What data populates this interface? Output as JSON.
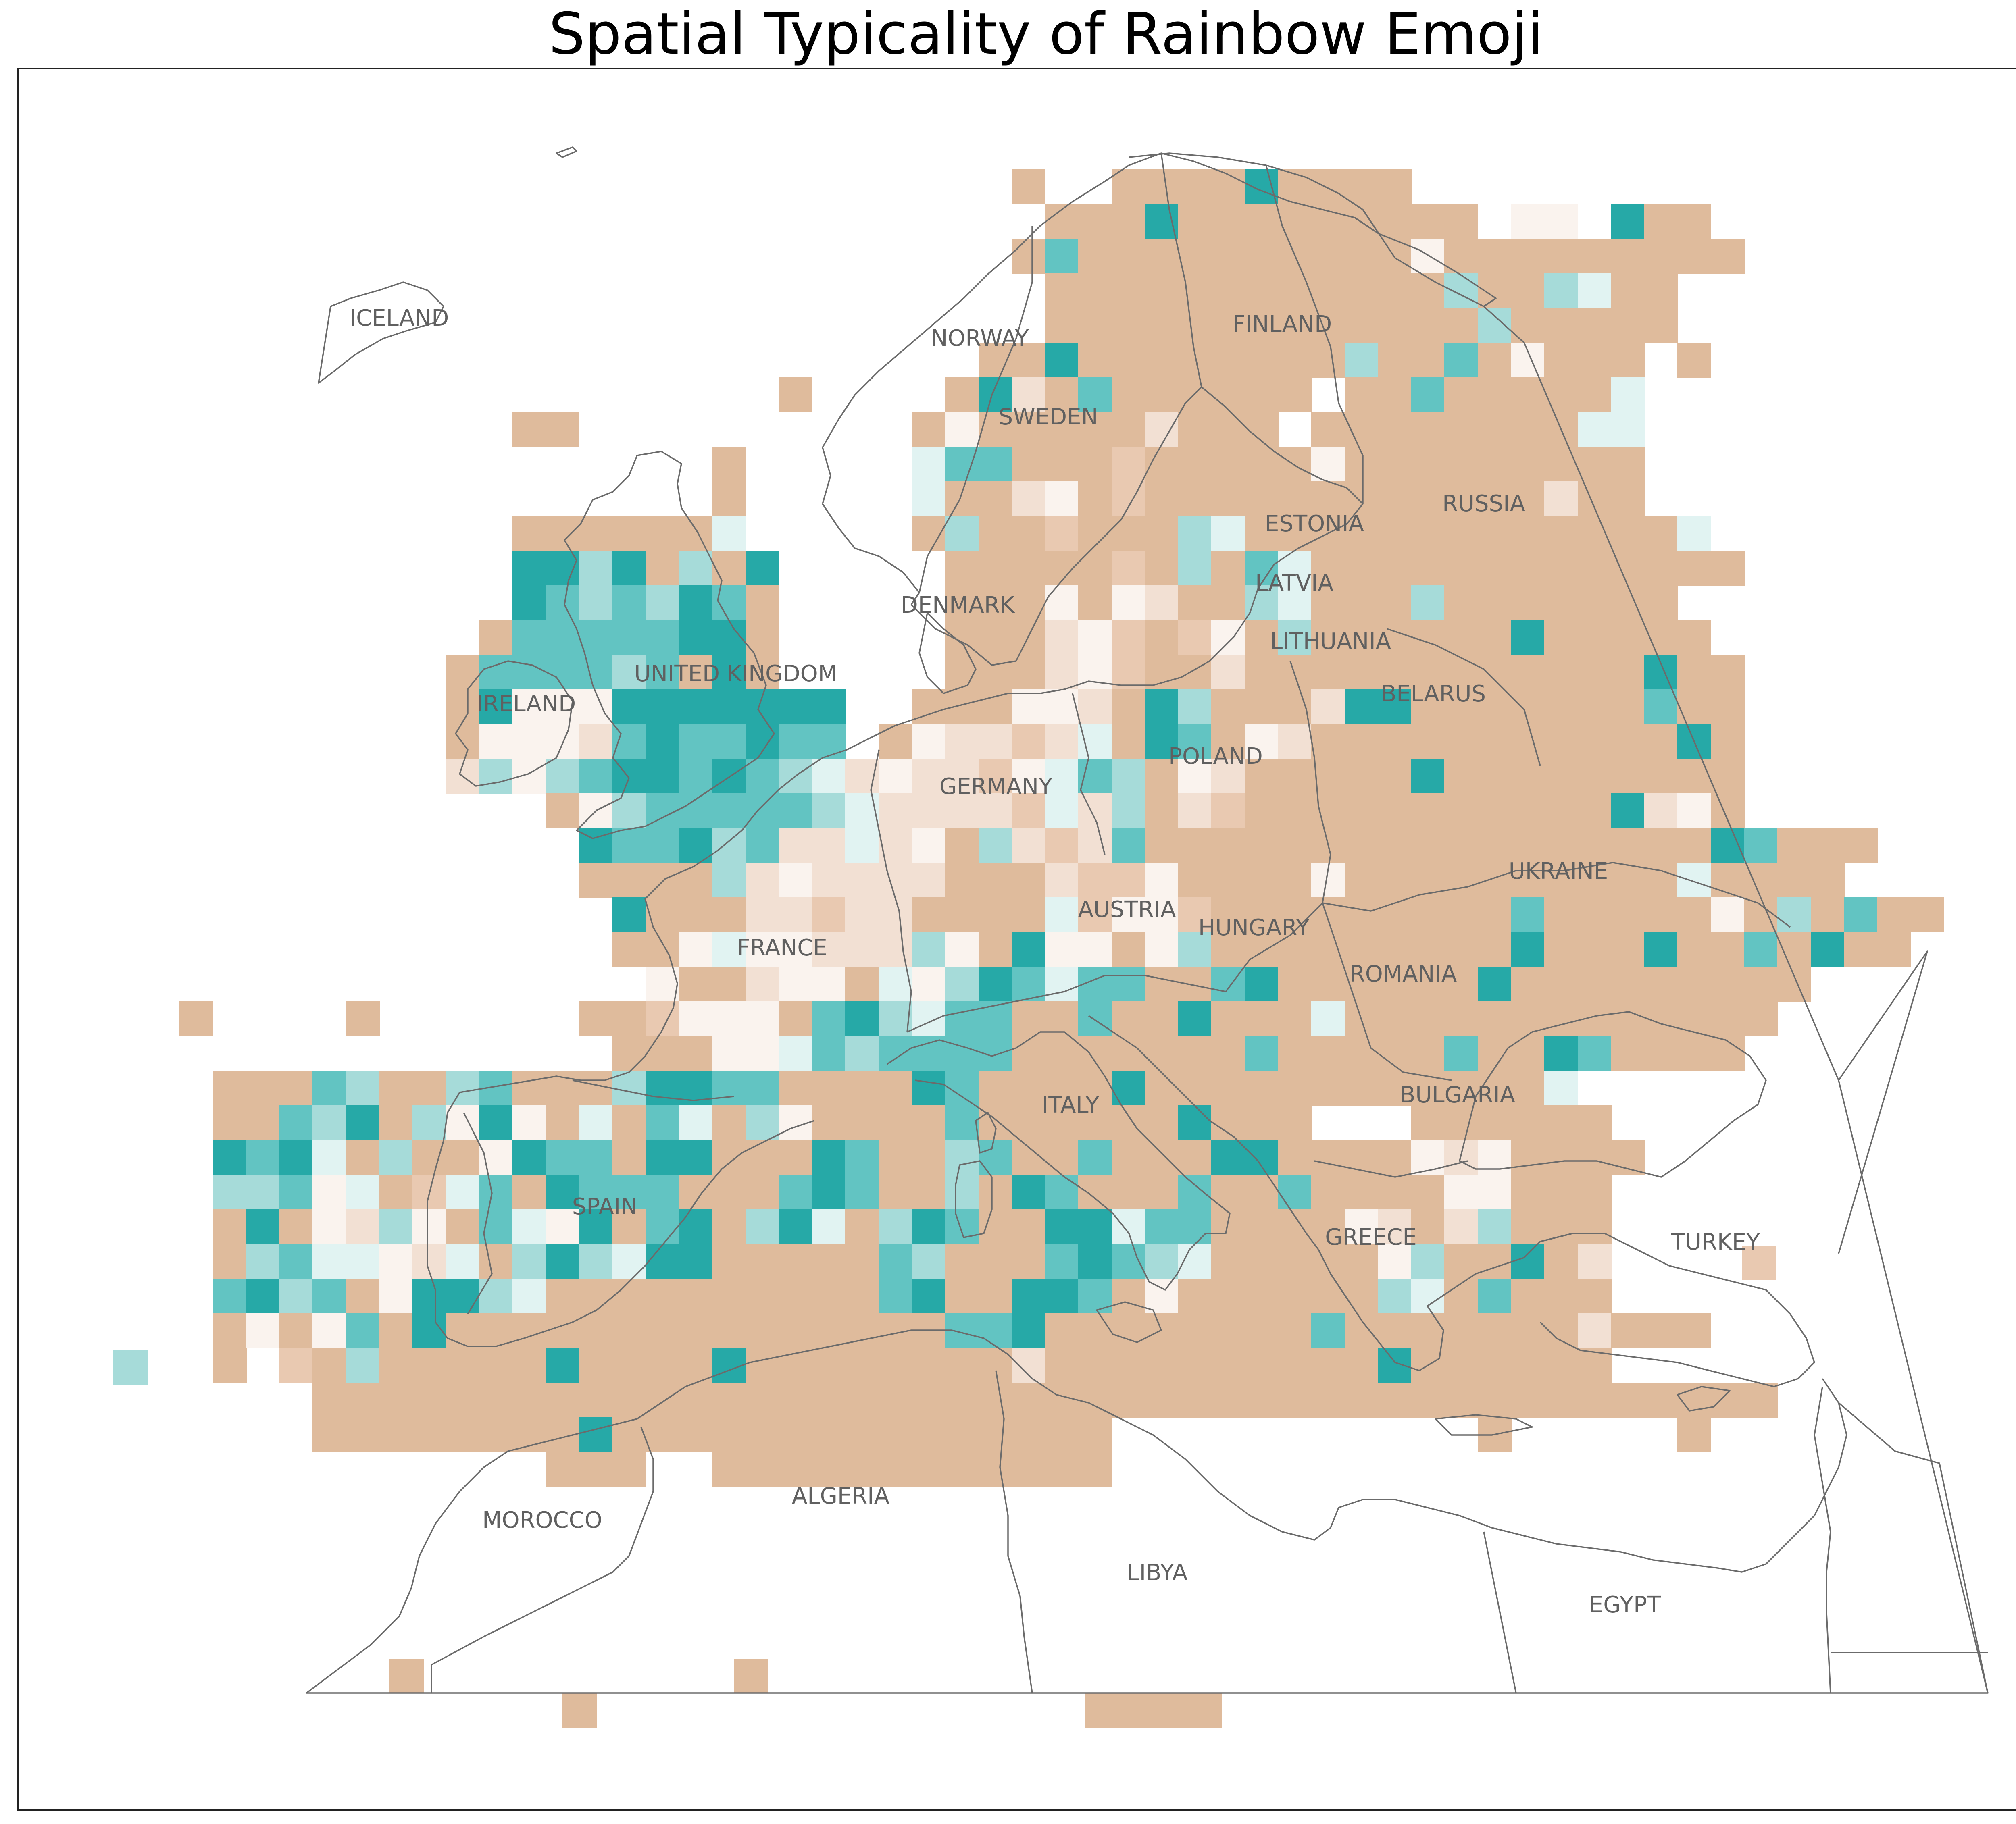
{
  "title": "Spatial Typicality of Rainbow Emoji",
  "colors": {
    "high": "#26a9a7",
    "mid_high": "#62c4c2",
    "mid": "#a6dbd9",
    "low_positive": "#e1f3f2",
    "neutral": "#faf3ee",
    "low_negative": "#f2e0d3",
    "mid_negative": "#e9c9b1",
    "negative": "#dfbb9c",
    "border_lines": "#6b6b6b"
  },
  "countries": [
    {
      "name": "ICELAND"
    },
    {
      "name": "NORWAY"
    },
    {
      "name": "FINLAND"
    },
    {
      "name": "SWEDEN"
    },
    {
      "name": "RUSSIA"
    },
    {
      "name": "ESTONIA"
    },
    {
      "name": "LATVIA"
    },
    {
      "name": "DENMARK"
    },
    {
      "name": "LITHUANIA"
    },
    {
      "name": "UNITED KINGDOM"
    },
    {
      "name": "BELARUS"
    },
    {
      "name": "IRELAND"
    },
    {
      "name": "POLAND"
    },
    {
      "name": "GERMANY"
    },
    {
      "name": "UKRAINE"
    },
    {
      "name": "AUSTRIA"
    },
    {
      "name": "HUNGARY"
    },
    {
      "name": "FRANCE"
    },
    {
      "name": "ROMANIA"
    },
    {
      "name": "BULGARIA"
    },
    {
      "name": "ITALY"
    },
    {
      "name": "SPAIN"
    },
    {
      "name": "GREECE"
    },
    {
      "name": "TURKEY"
    },
    {
      "name": "MOROCCO"
    },
    {
      "name": "ALGERIA"
    },
    {
      "name": "LIBYA"
    },
    {
      "name": "EGYPT"
    }
  ]
}
